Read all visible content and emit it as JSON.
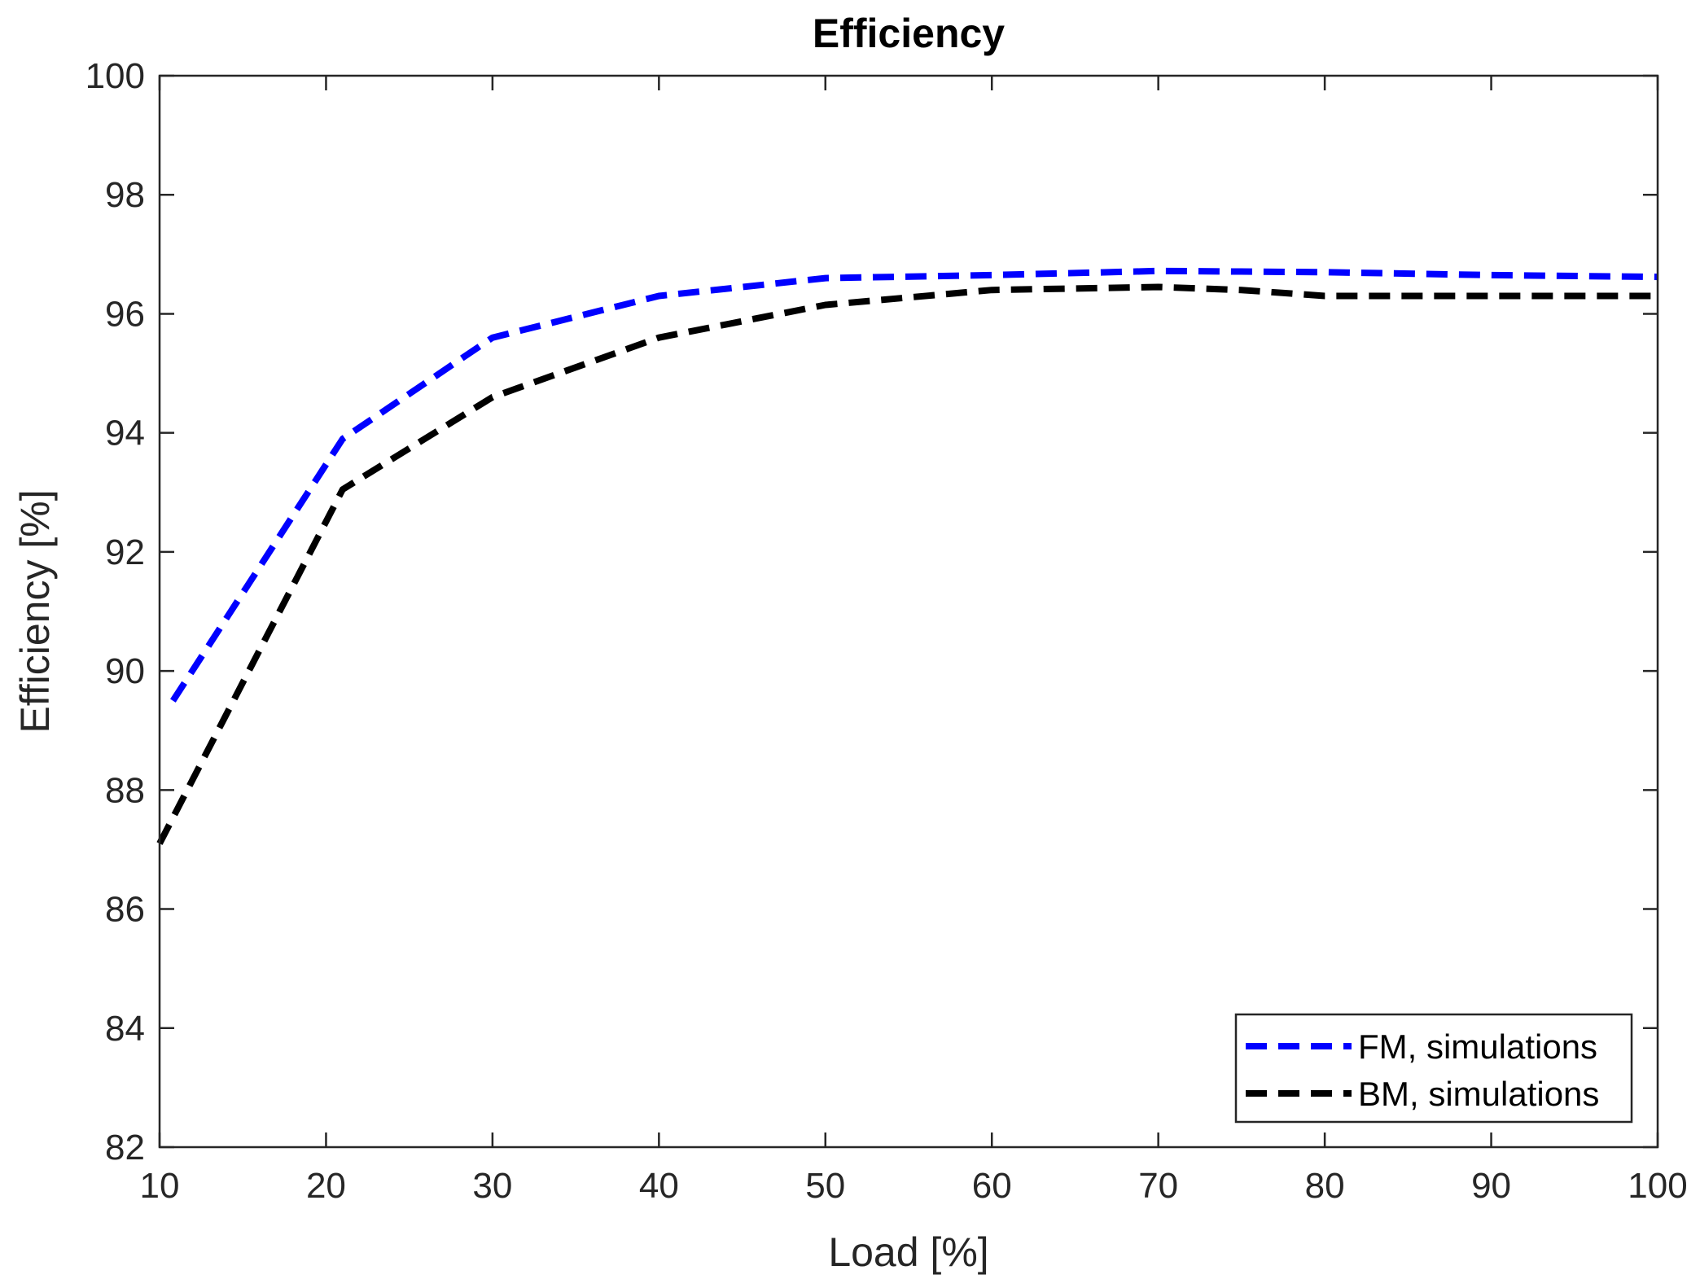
{
  "chart_data": {
    "type": "line",
    "title": "Efficiency",
    "xlabel": "Load [%]",
    "ylabel": "Efficiency [%]",
    "xlim": [
      10,
      100
    ],
    "ylim": [
      82,
      100
    ],
    "xticks": [
      10,
      20,
      30,
      40,
      50,
      60,
      70,
      80,
      90,
      100
    ],
    "yticks": [
      82,
      84,
      86,
      88,
      90,
      92,
      94,
      96,
      98,
      100
    ],
    "grid": false,
    "legend_position": "bottom-right",
    "series": [
      {
        "name": "FM, simulations",
        "color": "#0000ff",
        "style": "dashed",
        "x": [
          10.8,
          21,
          30,
          40,
          50,
          60,
          70,
          80,
          90,
          100
        ],
        "y": [
          89.5,
          93.9,
          95.6,
          96.3,
          96.6,
          96.65,
          96.72,
          96.7,
          96.65,
          96.62
        ]
      },
      {
        "name": "BM, simulations",
        "color": "#000000",
        "style": "dashed",
        "x": [
          10,
          21,
          30,
          40,
          50,
          60,
          70,
          75,
          80,
          90,
          100
        ],
        "y": [
          87.1,
          93.05,
          94.6,
          95.6,
          96.15,
          96.4,
          96.45,
          96.4,
          96.3,
          96.3,
          96.3
        ]
      }
    ]
  }
}
